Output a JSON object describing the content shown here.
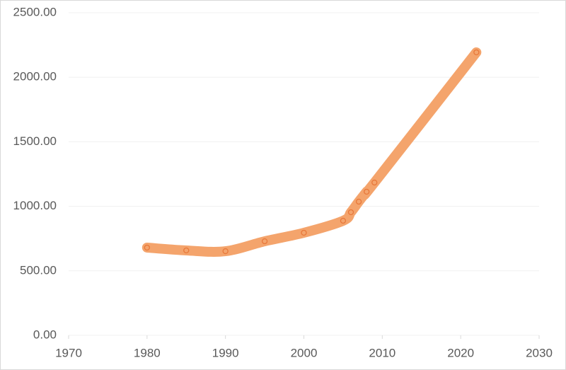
{
  "chart_data": {
    "type": "scatter-line",
    "x": [
      1980,
      1985,
      1990,
      1995,
      2000,
      2005,
      2006,
      2007,
      2008,
      2009,
      2022
    ],
    "values": [
      680,
      658,
      652,
      729,
      795,
      888,
      954,
      1036,
      1113,
      1184,
      2193
    ],
    "color": "#f4a46c",
    "marker_color": "#e8783a",
    "xlim": [
      1970,
      2030
    ],
    "xticks": [
      1970,
      1980,
      1990,
      2000,
      2010,
      2020,
      2030
    ],
    "ylim": [
      0,
      2500
    ],
    "yticks": [
      {
        "value": 0,
        "label": "0.00"
      },
      {
        "value": 500,
        "label": "500.00"
      },
      {
        "value": 1000,
        "label": "1000.00"
      },
      {
        "value": 1500,
        "label": "1500.00"
      },
      {
        "value": 2000,
        "label": "2000.00"
      },
      {
        "value": 2500,
        "label": "2500.00"
      }
    ],
    "grid": true
  }
}
